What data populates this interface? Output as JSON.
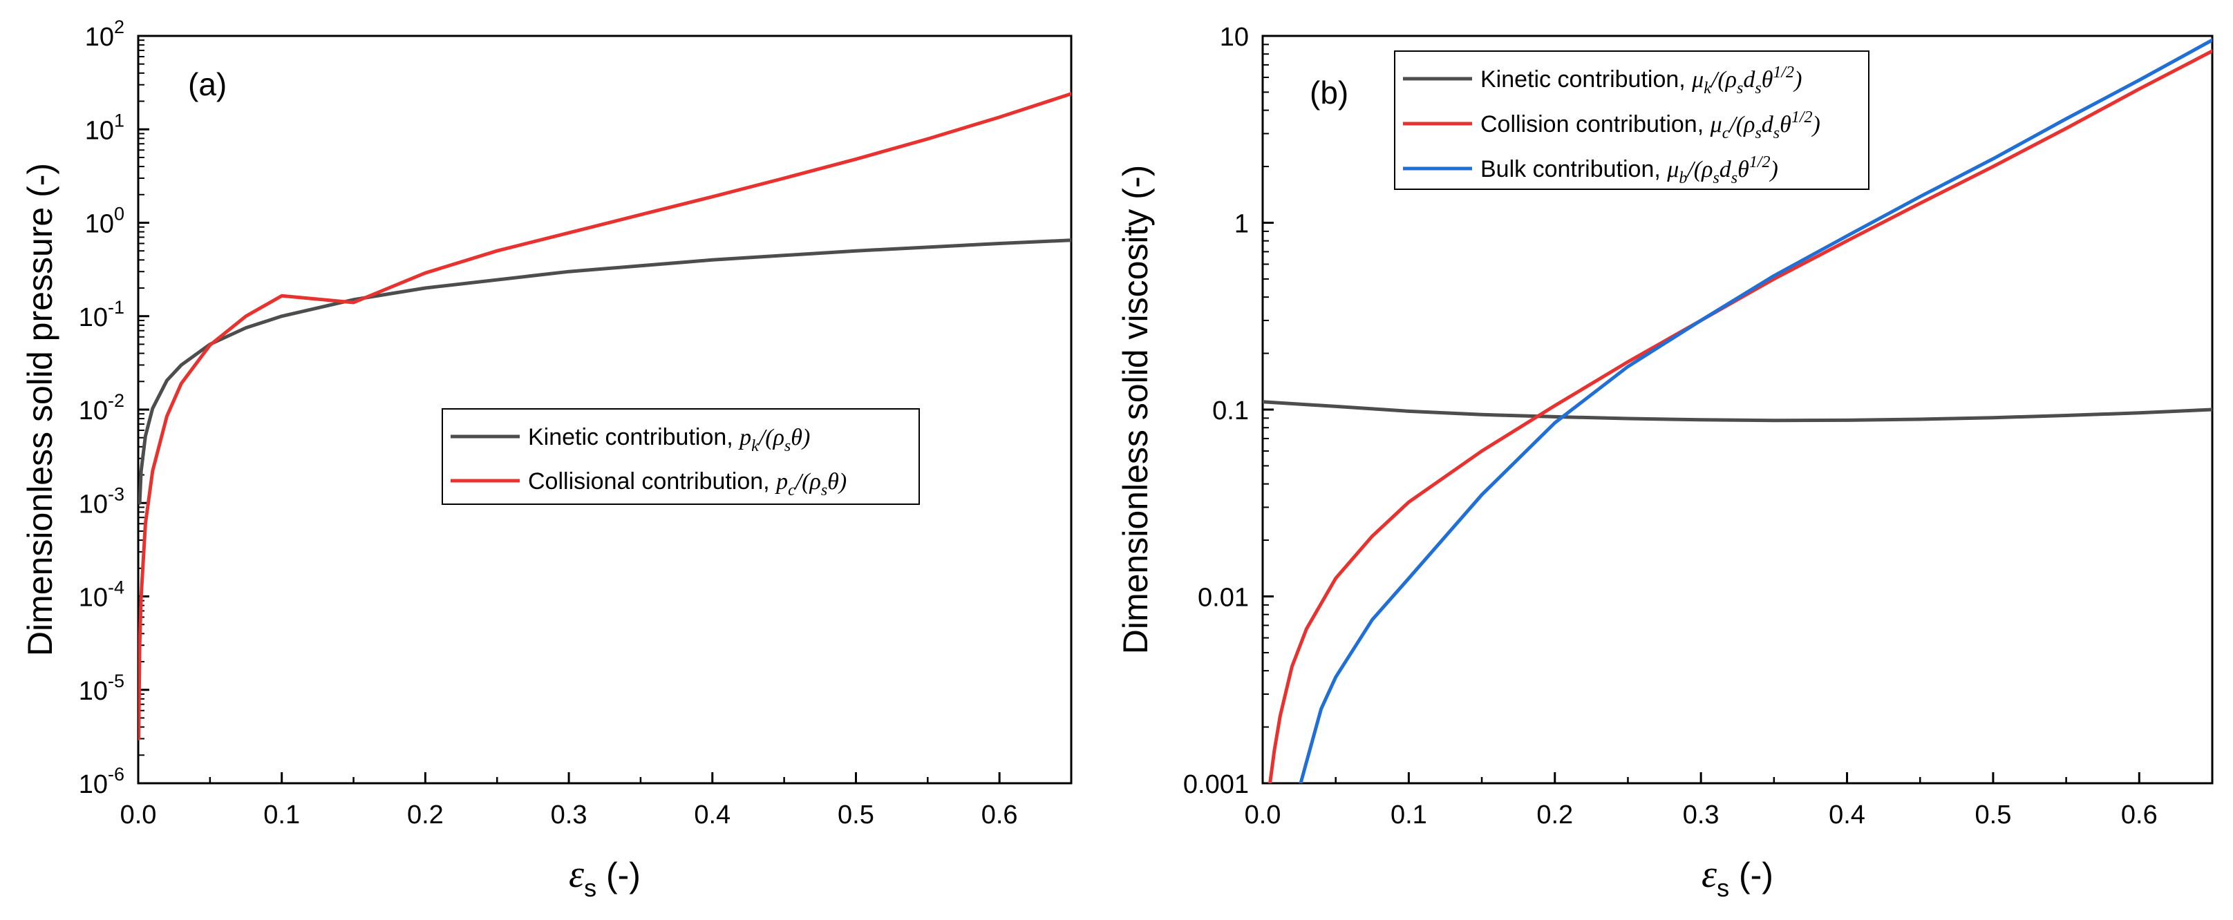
{
  "colors": {
    "kinetic": "#4d4d4d",
    "collision": "#e8322f",
    "bulk": "#1f6fd6",
    "axis": "#000000"
  },
  "chart_data": [
    {
      "type": "line",
      "panel_label": "(a)",
      "x_scale": "linear",
      "y_scale": "log",
      "xlim": [
        0.0,
        0.65
      ],
      "ylim": [
        1e-06,
        100
      ],
      "x_ticks": [
        "0.0",
        "0.1",
        "0.2",
        "0.3",
        "0.4",
        "0.5",
        "0.6"
      ],
      "y_tick_base": "10",
      "y_tick_exponents": [
        "-6",
        "-5",
        "-4",
        "-3",
        "-2",
        "-1",
        "0",
        "1",
        "2"
      ],
      "xlabel": {
        "symbol": "ε",
        "subscript": "s",
        "suffix": " (-)"
      },
      "ylabel": "Dimensionless solid pressure (-)",
      "legend_position": "center-right",
      "legend": [
        {
          "text": "Kinetic contribution, ",
          "math": "p",
          "sub": "k",
          "tail": "/(ρ",
          "tail_sub": "s",
          "tail_end": "θ)"
        },
        {
          "text": "Collisional contribution, ",
          "math": "p",
          "sub": "c",
          "tail": "/(ρ",
          "tail_sub": "s",
          "tail_end": "θ)"
        }
      ],
      "series": [
        {
          "name": "Kinetic contribution",
          "color_key": "kinetic",
          "x": [
            0.001,
            0.002,
            0.005,
            0.01,
            0.02,
            0.03,
            0.05,
            0.075,
            0.1,
            0.15,
            0.2,
            0.3,
            0.4,
            0.5,
            0.6,
            0.65
          ],
          "y": [
            0.001,
            0.0022,
            0.0052,
            0.0103,
            0.0205,
            0.03,
            0.05,
            0.075,
            0.1,
            0.15,
            0.2,
            0.3,
            0.4,
            0.5,
            0.6,
            0.65
          ]
        },
        {
          "name": "Collisional contribution",
          "color_key": "collision",
          "x": [
            0.0003,
            0.001,
            0.002,
            0.005,
            0.01,
            0.02,
            0.03,
            0.05,
            0.075,
            0.1,
            0.15,
            0.2,
            0.25,
            0.3,
            0.35,
            0.4,
            0.45,
            0.5,
            0.55,
            0.6,
            0.65
          ],
          "y": [
            3e-06,
            3e-05,
            0.0001,
            0.0006,
            0.0022,
            0.0085,
            0.019,
            0.049,
            0.1,
            0.165,
            0.14,
            0.29,
            0.5,
            0.78,
            1.22,
            1.9,
            3.0,
            4.8,
            7.9,
            13.5,
            24.0
          ]
        }
      ]
    },
    {
      "type": "line",
      "panel_label": "(b)",
      "x_scale": "linear",
      "y_scale": "log",
      "xlim": [
        0.0,
        0.65
      ],
      "ylim": [
        0.001,
        10
      ],
      "x_ticks": [
        "0.0",
        "0.1",
        "0.2",
        "0.3",
        "0.4",
        "0.5",
        "0.6"
      ],
      "y_ticks": [
        "0.001",
        "0.01",
        "0.1",
        "1",
        "10"
      ],
      "xlabel": {
        "symbol": "ε",
        "subscript": "s",
        "suffix": " (-)"
      },
      "ylabel": "Dimensionless solid viscosity (-)",
      "legend_position": "top-left",
      "legend": [
        {
          "text": "Kinetic contribution, ",
          "math": "μ",
          "sub": "k",
          "tail": "/(ρ",
          "tail_sub": "s",
          "tail_mid": "d",
          "tail_mid_sub": "s",
          "tail_end": "θ",
          "sup": "1/2",
          "close": ")"
        },
        {
          "text": "Collision contribution, ",
          "math": "μ",
          "sub": "c",
          "tail": "/(ρ",
          "tail_sub": "s",
          "tail_mid": "d",
          "tail_mid_sub": "s",
          "tail_end": "θ",
          "sup": "1/2",
          "close": ")"
        },
        {
          "text": "Bulk contribution, ",
          "math": "μ",
          "sub": "b",
          "tail": "/(ρ",
          "tail_sub": "s",
          "tail_mid": "d",
          "tail_mid_sub": "s",
          "tail_end": "θ",
          "sup": "1/2",
          "close": ")"
        }
      ],
      "series": [
        {
          "name": "Kinetic contribution",
          "color_key": "kinetic",
          "x": [
            0.0,
            0.05,
            0.1,
            0.15,
            0.2,
            0.25,
            0.3,
            0.35,
            0.4,
            0.45,
            0.5,
            0.55,
            0.6,
            0.65
          ],
          "y": [
            0.11,
            0.104,
            0.098,
            0.094,
            0.0915,
            0.0895,
            0.0882,
            0.0875,
            0.0877,
            0.0888,
            0.0905,
            0.093,
            0.096,
            0.1
          ]
        },
        {
          "name": "Collision contribution",
          "color_key": "collision",
          "x": [
            0.005,
            0.008,
            0.012,
            0.02,
            0.03,
            0.05,
            0.075,
            0.1,
            0.15,
            0.2,
            0.25,
            0.3,
            0.35,
            0.4,
            0.45,
            0.5,
            0.55,
            0.6,
            0.65
          ],
          "y": [
            0.001,
            0.0015,
            0.0023,
            0.0042,
            0.0067,
            0.0125,
            0.021,
            0.032,
            0.06,
            0.105,
            0.18,
            0.3,
            0.5,
            0.8,
            1.27,
            2.0,
            3.2,
            5.2,
            8.3
          ]
        },
        {
          "name": "Bulk contribution",
          "color_key": "bulk",
          "x": [
            0.026,
            0.03,
            0.04,
            0.05,
            0.075,
            0.1,
            0.15,
            0.2,
            0.25,
            0.3,
            0.35,
            0.4,
            0.45,
            0.5,
            0.55,
            0.6,
            0.65
          ],
          "y": [
            0.001,
            0.0013,
            0.0025,
            0.0037,
            0.0075,
            0.0125,
            0.035,
            0.085,
            0.17,
            0.3,
            0.52,
            0.85,
            1.38,
            2.2,
            3.6,
            5.8,
            9.5
          ]
        }
      ]
    }
  ]
}
